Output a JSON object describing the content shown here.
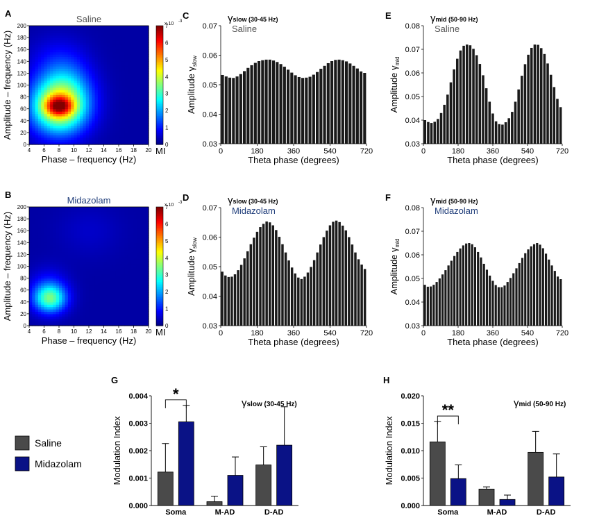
{
  "colors": {
    "bar": "#1a1a1a",
    "saline": "#4a4a4a",
    "midazolam": "#0a1286",
    "title_grey": "#555555",
    "title_blue": "#1f3d7a"
  },
  "chart_data": [
    {
      "id": "A",
      "type": "heatmap",
      "panel_label": "A",
      "title": "Saline",
      "xlabel": "Phase – frequency (Hz)",
      "ylabel": "Amplitude – frequency (Hz)",
      "xlim": [
        4,
        20
      ],
      "ylim": [
        0,
        200
      ],
      "xticks": [
        "4",
        "6",
        "8",
        "10",
        "12",
        "14",
        "16",
        "18",
        "20"
      ],
      "yticks": [
        "0",
        "20",
        "40",
        "60",
        "80",
        "100",
        "120",
        "140",
        "160",
        "180",
        "200"
      ],
      "colorbar": {
        "label": "MI",
        "exponent": "x 10",
        "exponent_power": "-3",
        "ticks": [
          "0",
          "1",
          "2",
          "3",
          "4",
          "5",
          "6",
          "7"
        ],
        "max": 7
      },
      "hotspots": [
        {
          "x": 8,
          "y": 65,
          "sx": 2.6,
          "sy": 32,
          "value": 4.2
        },
        {
          "x": 8,
          "y": 65,
          "sx": 1.3,
          "sy": 11,
          "value": 2.6
        },
        {
          "x": 9.2,
          "y": 105,
          "sx": 2.4,
          "sy": 38,
          "value": 0.9
        },
        {
          "x": 7,
          "y": 140,
          "sx": 2.5,
          "sy": 30,
          "value": 0.4
        }
      ]
    },
    {
      "id": "B",
      "type": "heatmap",
      "panel_label": "B",
      "title": "Midazolam",
      "xlabel": "Phase – frequency (Hz)",
      "ylabel": "Amplitude – frequency (Hz)",
      "xlim": [
        4,
        20
      ],
      "ylim": [
        0,
        200
      ],
      "xticks": [
        "4",
        "6",
        "8",
        "10",
        "12",
        "14",
        "16",
        "18",
        "20"
      ],
      "yticks": [
        "0",
        "20",
        "40",
        "60",
        "80",
        "100",
        "120",
        "140",
        "160",
        "180",
        "200"
      ],
      "colorbar": {
        "label": "MI",
        "exponent": "x 10",
        "exponent_power": "-3",
        "ticks": [
          "0",
          "1",
          "2",
          "3",
          "4",
          "5",
          "6",
          "7"
        ],
        "max": 7
      },
      "hotspots": [
        {
          "x": 6.8,
          "y": 46,
          "sx": 1.5,
          "sy": 16,
          "value": 2.6
        },
        {
          "x": 6.6,
          "y": 62,
          "sx": 1.8,
          "sy": 24,
          "value": 0.8
        },
        {
          "x": 12,
          "y": 160,
          "sx": 3,
          "sy": 30,
          "value": 0.25
        }
      ]
    },
    {
      "id": "C",
      "type": "bar",
      "panel_label": "C",
      "title_greek": "γ",
      "title_sub": "slow (30-45 Hz)",
      "subtitle": "Saline",
      "xlabel": "Theta phase (degrees)",
      "ylabel_main": "Amplitude ",
      "ylabel_greek": "γ",
      "ylabel_sub": "slow",
      "xlim": [
        0,
        720
      ],
      "ylim": [
        0.03,
        0.07
      ],
      "xticks": [
        0,
        180,
        360,
        540,
        720
      ],
      "yticks": [
        0.03,
        0.04,
        0.05,
        0.06,
        0.07
      ],
      "values": [
        0.0533,
        0.0528,
        0.0524,
        0.0523,
        0.0528,
        0.0536,
        0.0546,
        0.0557,
        0.0566,
        0.0574,
        0.058,
        0.0583,
        0.0585,
        0.0585,
        0.0582,
        0.0577,
        0.057,
        0.0561,
        0.0551,
        0.0541,
        0.0532,
        0.0526,
        0.0523,
        0.0524,
        0.0527,
        0.0534,
        0.0543,
        0.0554,
        0.0564,
        0.0573,
        0.058,
        0.0584,
        0.0585,
        0.0583,
        0.0579,
        0.0572,
        0.0564,
        0.0555,
        0.0545,
        0.054
      ]
    },
    {
      "id": "D",
      "type": "bar",
      "panel_label": "D",
      "title_greek": "γ",
      "title_sub": "slow (30-45 Hz)",
      "subtitle": "Midazolam",
      "xlabel": "Theta phase (degrees)",
      "ylabel_main": "Amplitude ",
      "ylabel_greek": "γ",
      "ylabel_sub": "slow",
      "xlim": [
        0,
        720
      ],
      "ylim": [
        0.03,
        0.07
      ],
      "xticks": [
        0,
        180,
        360,
        540,
        720
      ],
      "yticks": [
        0.03,
        0.04,
        0.05,
        0.06,
        0.07
      ],
      "values": [
        0.0483,
        0.047,
        0.0465,
        0.0466,
        0.0474,
        0.0488,
        0.0506,
        0.0528,
        0.0552,
        0.0576,
        0.0598,
        0.0618,
        0.0634,
        0.0645,
        0.0653,
        0.065,
        0.064,
        0.0624,
        0.0601,
        0.0576,
        0.0548,
        0.0521,
        0.0497,
        0.0477,
        0.0463,
        0.0458,
        0.0466,
        0.048,
        0.0499,
        0.0522,
        0.0548,
        0.0575,
        0.06,
        0.0622,
        0.064,
        0.0652,
        0.0656,
        0.0651,
        0.0639,
        0.0623,
        0.06,
        0.0575,
        0.0548,
        0.0525,
        0.0507,
        0.0492
      ]
    },
    {
      "id": "E",
      "type": "bar",
      "panel_label": "E",
      "title_greek": "γ",
      "title_sub": "mid (50-90 Hz)",
      "subtitle": "Saline",
      "xlabel": "Theta phase (degrees)",
      "ylabel_main": "Amplitude ",
      "ylabel_greek": "γ",
      "ylabel_sub": "mid",
      "xlim": [
        0,
        720
      ],
      "ylim": [
        0.03,
        0.08
      ],
      "xticks": [
        0,
        180,
        360,
        540,
        720
      ],
      "yticks": [
        0.03,
        0.04,
        0.05,
        0.06,
        0.07,
        0.08
      ],
      "values": [
        0.04,
        0.0392,
        0.0388,
        0.0393,
        0.0405,
        0.043,
        0.0465,
        0.0508,
        0.056,
        0.0615,
        0.066,
        0.0695,
        0.0715,
        0.072,
        0.0717,
        0.0702,
        0.0675,
        0.0638,
        0.059,
        0.0535,
        0.0478,
        0.0428,
        0.0395,
        0.0383,
        0.0381,
        0.0391,
        0.0408,
        0.0435,
        0.0478,
        0.053,
        0.0588,
        0.0637,
        0.0677,
        0.0706,
        0.072,
        0.0719,
        0.0705,
        0.068,
        0.064,
        0.0592,
        0.054,
        0.049,
        0.0455
      ]
    },
    {
      "id": "F",
      "type": "bar",
      "panel_label": "F",
      "title_greek": "γ",
      "title_sub": "mid (50-90 Hz)",
      "subtitle": "Midazolam",
      "xlabel": "Theta phase (degrees)",
      "ylabel_main": "Amplitude ",
      "ylabel_greek": "γ",
      "ylabel_sub": "mid",
      "xlim": [
        0,
        720
      ],
      "ylim": [
        0.03,
        0.08
      ],
      "xticks": [
        0,
        180,
        360,
        540,
        720
      ],
      "yticks": [
        0.03,
        0.04,
        0.05,
        0.06,
        0.07,
        0.08
      ],
      "values": [
        0.0473,
        0.0465,
        0.0466,
        0.0473,
        0.0485,
        0.05,
        0.0517,
        0.0535,
        0.0555,
        0.0575,
        0.0595,
        0.0612,
        0.0627,
        0.064,
        0.0648,
        0.065,
        0.0645,
        0.0632,
        0.0612,
        0.0589,
        0.0562,
        0.0537,
        0.0512,
        0.049,
        0.0472,
        0.0463,
        0.0463,
        0.047,
        0.0485,
        0.0502,
        0.0522,
        0.0543,
        0.0565,
        0.0587,
        0.0607,
        0.0623,
        0.0636,
        0.0645,
        0.065,
        0.0643,
        0.0628,
        0.0605,
        0.058,
        0.0555,
        0.0532,
        0.0508,
        0.0497
      ]
    },
    {
      "id": "G",
      "type": "bar",
      "panel_label": "G",
      "title_greek": "γ",
      "title_sub": "slow (30-45 Hz)",
      "ylabel": "Modulation Index",
      "categories": [
        "Soma",
        "M-AD",
        "D-AD"
      ],
      "ylim": [
        0,
        0.004
      ],
      "yticks": [
        "0.000",
        "0.001",
        "0.002",
        "0.003",
        "0.004"
      ],
      "series": [
        {
          "name": "Saline",
          "values": [
            0.00122,
            0.00014,
            0.00148
          ],
          "errors": [
            0.00104,
            0.0002,
            0.00066
          ]
        },
        {
          "name": "Midazolam",
          "values": [
            0.00305,
            0.0011,
            0.0022
          ],
          "errors": [
            0.0006,
            0.00067,
            0.0014
          ]
        }
      ],
      "significance": {
        "category": "Soma",
        "label": "*"
      }
    },
    {
      "id": "H",
      "type": "bar",
      "panel_label": "H",
      "title_greek": "γ",
      "title_sub": "mid (50-90 Hz)",
      "ylabel": "Modulation Index",
      "categories": [
        "Soma",
        "M-AD",
        "D-AD"
      ],
      "ylim": [
        0,
        0.02
      ],
      "yticks": [
        "0.000",
        "0.005",
        "0.010",
        "0.015",
        "0.020"
      ],
      "series": [
        {
          "name": "Saline",
          "values": [
            0.0116,
            0.003,
            0.0097
          ],
          "errors": [
            0.0037,
            0.0004,
            0.0038
          ]
        },
        {
          "name": "Midazolam",
          "values": [
            0.0049,
            0.0011,
            0.0052
          ],
          "errors": [
            0.0025,
            0.0008,
            0.0042
          ]
        }
      ],
      "significance": {
        "category": "Soma",
        "label": "**"
      }
    }
  ],
  "legend": {
    "items": [
      {
        "label": "Saline",
        "color": "#4a4a4a"
      },
      {
        "label": "Midazolam",
        "color": "#0a1286"
      }
    ]
  }
}
